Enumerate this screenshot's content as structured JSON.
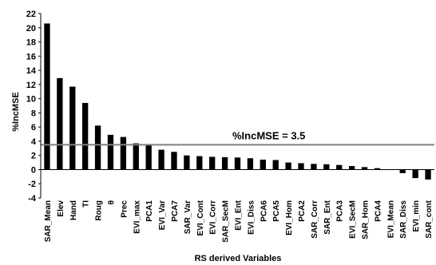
{
  "chart_data": {
    "type": "bar",
    "xlabel": "RS derived Variables",
    "ylabel": "%IncMSE",
    "ylim": [
      -4,
      22
    ],
    "yticks": [
      -4,
      -2,
      0,
      2,
      4,
      6,
      8,
      10,
      12,
      14,
      16,
      18,
      20,
      22
    ],
    "categories": [
      "SAR_Mean",
      "Elev",
      "Hand",
      "TI",
      "Roug",
      "θ",
      "Prec",
      "EVI_max",
      "PCA1",
      "EVI_Var",
      "PCA7",
      "SAR_Var",
      "EVI_Cont",
      "EVI_Corr",
      "SAR_SecM",
      "EVI_Ent",
      "EVI_Diss",
      "PCA6",
      "PCA5",
      "EVI_Hom",
      "PCA2",
      "SAR_Corr",
      "SAR_Ent",
      "PCA3",
      "EVI_SecM",
      "SAR_Hom",
      "PCA4",
      "EVI_Mean",
      "SAR_Diss",
      "EVI_min",
      "SAR_cont"
    ],
    "values": [
      20.6,
      12.9,
      11.7,
      9.4,
      6.2,
      4.9,
      4.6,
      3.7,
      3.6,
      2.8,
      2.5,
      2.0,
      1.9,
      1.8,
      1.75,
      1.7,
      1.6,
      1.4,
      1.35,
      1.0,
      0.9,
      0.8,
      0.75,
      0.65,
      0.5,
      0.35,
      0.2,
      0.05,
      -0.5,
      -1.2,
      -1.4
    ],
    "bar_color": "#000000",
    "threshold": {
      "value": 3.5,
      "label": "%IncMSE = 3.5",
      "color": "#808080"
    },
    "grid": false
  }
}
